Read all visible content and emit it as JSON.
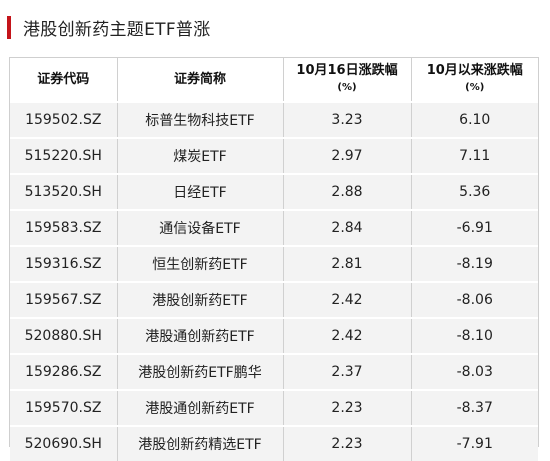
{
  "title": "港股创新药主题ETF普涨",
  "colors": {
    "accent": "#c4141a",
    "row_bg": "#f3f3f3"
  },
  "table": {
    "headers": [
      {
        "line1": "证券代码",
        "line2": ""
      },
      {
        "line1": "证券简称",
        "line2": ""
      },
      {
        "line1": "10月16日涨跌幅",
        "line2": "(%)"
      },
      {
        "line1": "10月以来涨跌幅",
        "line2": "(%)"
      }
    ],
    "rows": [
      {
        "code": "159502.SZ",
        "name": "标普生物科技ETF",
        "day": "3.23",
        "month": "6.10"
      },
      {
        "code": "515220.SH",
        "name": "煤炭ETF",
        "day": "2.97",
        "month": "7.11"
      },
      {
        "code": "513520.SH",
        "name": "日经ETF",
        "day": "2.88",
        "month": "5.36"
      },
      {
        "code": "159583.SZ",
        "name": "通信设备ETF",
        "day": "2.84",
        "month": "-6.91"
      },
      {
        "code": "159316.SZ",
        "name": "恒生创新药ETF",
        "day": "2.81",
        "month": "-8.19"
      },
      {
        "code": "159567.SZ",
        "name": "港股创新药ETF",
        "day": "2.42",
        "month": "-8.06"
      },
      {
        "code": "520880.SH",
        "name": "港股通创新药ETF",
        "day": "2.42",
        "month": "-8.10"
      },
      {
        "code": "159286.SZ",
        "name": "港股创新药ETF鹏华",
        "day": "2.37",
        "month": "-8.03"
      },
      {
        "code": "159570.SZ",
        "name": "港股通创新药ETF",
        "day": "2.23",
        "month": "-8.37"
      },
      {
        "code": "520690.SH",
        "name": "港股创新药精选ETF",
        "day": "2.23",
        "month": "-7.91"
      }
    ]
  }
}
